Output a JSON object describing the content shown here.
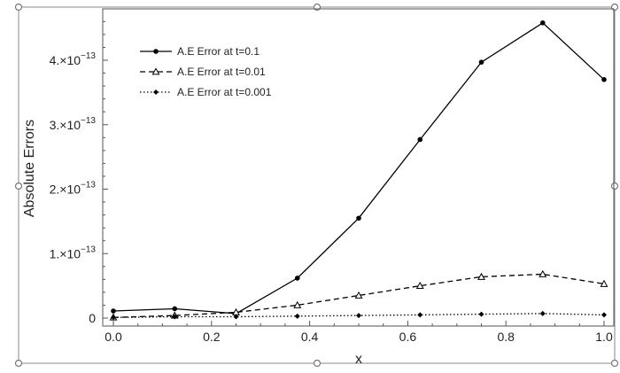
{
  "chart_data": {
    "type": "line",
    "xlabel": "x",
    "ylabel": "Absolute Errors",
    "xlim": [
      0.0,
      1.0
    ],
    "ylim": [
      0,
      4.75e-13
    ],
    "x_ticks": [
      0.0,
      0.2,
      0.4,
      0.6,
      0.8,
      1.0
    ],
    "x_tick_labels": [
      "0.0",
      "0.2",
      "0.4",
      "0.6",
      "0.8",
      "1.0"
    ],
    "y_ticks": [
      0,
      1e-13,
      2e-13,
      3e-13,
      4e-13
    ],
    "y_tick_labels": [
      {
        "mantissa": "0",
        "exp": ""
      },
      {
        "mantissa": "1.×10",
        "exp": "−13"
      },
      {
        "mantissa": "2.×10",
        "exp": "−13"
      },
      {
        "mantissa": "3.×10",
        "exp": "−13"
      },
      {
        "mantissa": "4.×10",
        "exp": "−13"
      }
    ],
    "grid": false,
    "legend_position": "top-left",
    "x": [
      0.0,
      0.125,
      0.25,
      0.375,
      0.5,
      0.625,
      0.75,
      0.875,
      1.0
    ],
    "series": [
      {
        "name": "A.E Error at t=0.1",
        "style": "solid",
        "marker": "filled-circle",
        "values": [
          1.1e-14,
          1.45e-14,
          7e-15,
          6.2e-14,
          1.55e-13,
          2.77e-13,
          3.97e-13,
          4.58e-13,
          3.7e-13
        ]
      },
      {
        "name": "A.E Error at t=0.01",
        "style": "dashed",
        "marker": "open-triangle",
        "values": [
          1e-15,
          4e-15,
          9e-15,
          2e-14,
          3.5e-14,
          5e-14,
          6.4e-14,
          6.8e-14,
          5.3e-14
        ]
      },
      {
        "name": "A.E Error at t=0.001",
        "style": "dotted",
        "marker": "filled-diamond",
        "values": [
          1e-15,
          2e-15,
          2e-15,
          3e-15,
          4e-15,
          5e-15,
          6e-15,
          7e-15,
          5e-15
        ]
      }
    ],
    "colors": {
      "line": "#000000",
      "frame": "#555555",
      "handles": "#777777"
    }
  }
}
